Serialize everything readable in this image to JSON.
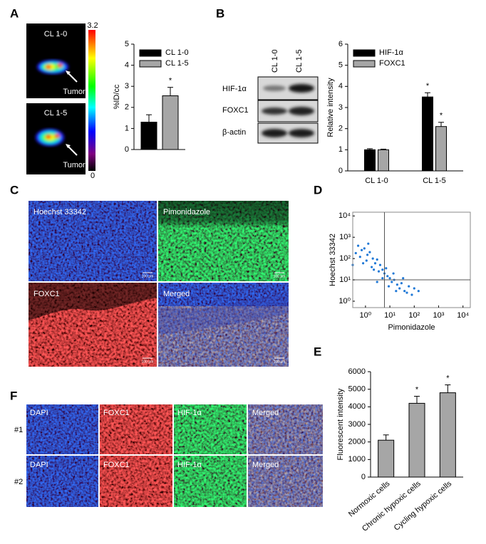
{
  "panel_labels": [
    "A",
    "B",
    "C",
    "D",
    "E",
    "F"
  ],
  "spect": {
    "colorbar_max": 3.2,
    "colorbar_min": 0,
    "images": [
      {
        "label": "CL 1-0",
        "pointer": "Tumor"
      },
      {
        "label": "CL 1-5",
        "pointer": "Tumor"
      }
    ]
  },
  "blot": {
    "lanes": [
      "CL 1-0",
      "CL 1-5"
    ],
    "rows": [
      "HIF-1α",
      "FOXC1",
      "β-actin"
    ]
  },
  "microscopy_c": {
    "panels": [
      "Hoechst 33342",
      "Pimonidazole",
      "FOXC1",
      "Merged"
    ],
    "scale_bar": "100 μm"
  },
  "microscopy_f": {
    "columns": [
      "DAPI",
      "FOXC1",
      "HIF-1α",
      "Merged"
    ],
    "rows": [
      "#1",
      "#2"
    ]
  },
  "chart_data": [
    {
      "type": "bar",
      "ylabel": "%ID/cc",
      "ylim": [
        0,
        5
      ],
      "yticks": [
        0,
        1,
        2,
        3,
        4,
        5
      ],
      "legend": "upper left",
      "series": [
        {
          "name": "CL 1-0",
          "color": "#000000",
          "values": [
            1.3
          ],
          "errors": [
            0.35
          ]
        },
        {
          "name": "CL 1-5",
          "color": "#a6a6a6",
          "values": [
            2.55
          ],
          "errors": [
            0.4
          ]
        }
      ],
      "annotations": [
        {
          "text": "*",
          "series": 1,
          "index": 0
        }
      ]
    },
    {
      "type": "bar",
      "ylabel": "Relative intensity",
      "ylim": [
        0,
        6
      ],
      "yticks": [
        0,
        1,
        2,
        3,
        4,
        5,
        6
      ],
      "legend": "upper left",
      "categories": [
        "CL 1-0",
        "CL 1-5"
      ],
      "series": [
        {
          "name": "HIF-1α",
          "color": "#000000",
          "values": [
            1.0,
            3.5
          ],
          "errors": [
            0.05,
            0.2
          ]
        },
        {
          "name": "FOXC1",
          "color": "#a6a6a6",
          "values": [
            1.0,
            2.1
          ],
          "errors": [
            0.03,
            0.2
          ]
        }
      ],
      "annotations": [
        {
          "text": "*",
          "series": 0,
          "index": 1
        },
        {
          "text": "*",
          "series": 1,
          "index": 1
        }
      ]
    },
    {
      "type": "scatter",
      "xlabel": "Pimonidazole",
      "ylabel": "Hoechst 33342",
      "xscale": "log",
      "yscale": "log",
      "xlim": [
        0.3,
        20000
      ],
      "ylim": [
        0.5,
        15000
      ],
      "xticks": [
        {
          "value": 1,
          "label": "10⁰"
        },
        {
          "value": 10,
          "label": "10¹"
        },
        {
          "value": 100,
          "label": "10²"
        },
        {
          "value": 1000,
          "label": "10³"
        },
        {
          "value": 10000,
          "label": "10⁴"
        }
      ],
      "yticks": [
        {
          "value": 1,
          "label": "10⁰"
        },
        {
          "value": 10,
          "label": "10¹"
        },
        {
          "value": 100,
          "label": "10²"
        },
        {
          "value": 1000,
          "label": "10³"
        },
        {
          "value": 10000,
          "label": "10⁴"
        }
      ],
      "gates": {
        "x": 6,
        "y": 10
      },
      "color": "#1f78d6",
      "x": [
        0.5,
        0.7,
        0.9,
        1.2,
        0.6,
        1.5,
        2,
        1.1,
        2.5,
        3,
        1.8,
        4,
        5,
        3.5,
        6,
        8,
        7,
        10,
        12,
        15,
        20,
        9,
        25,
        30,
        40,
        18,
        50,
        60,
        80,
        14,
        0.8,
        2.2,
        5,
        1.3,
        0.4,
        3,
        100,
        35,
        0.3,
        150
      ],
      "y": [
        400,
        250,
        300,
        150,
        120,
        200,
        100,
        80,
        60,
        90,
        40,
        50,
        30,
        25,
        20,
        15,
        35,
        12,
        8,
        10,
        6,
        5,
        4,
        7,
        3,
        3,
        2.5,
        5,
        2,
        20,
        60,
        30,
        12,
        500,
        180,
        8,
        4,
        12,
        50,
        3
      ]
    },
    {
      "type": "bar",
      "ylabel": "Fluorescent intensity",
      "ylim": [
        0,
        6000
      ],
      "yticks": [
        0,
        1000,
        2000,
        3000,
        4000,
        5000,
        6000
      ],
      "categories": [
        "Normoxic cells",
        "Chronic hypoxic cells",
        "Cycling hypoxic cells"
      ],
      "series": [
        {
          "color": "#a6a6a6",
          "values": [
            2100,
            4200,
            4800
          ],
          "errors": [
            300,
            400,
            450
          ]
        }
      ],
      "annotations": [
        {
          "text": "*",
          "series": 0,
          "index": 1
        },
        {
          "text": "*",
          "series": 0,
          "index": 2
        }
      ]
    }
  ]
}
